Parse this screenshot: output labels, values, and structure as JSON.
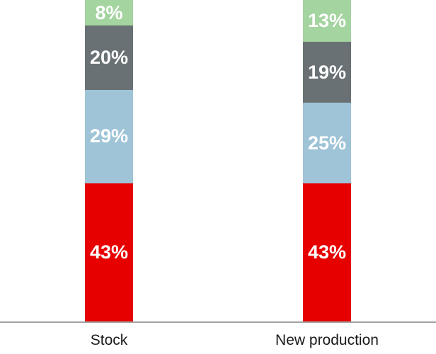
{
  "chart_data": {
    "type": "bar",
    "stacked": true,
    "orientation": "vertical",
    "title": "",
    "xlabel": "",
    "ylabel": "",
    "ylim": [
      0,
      100
    ],
    "grid": false,
    "legend": "none",
    "categories": [
      "Stock",
      "New production"
    ],
    "series": [
      {
        "name": "red-segment",
        "color": "#e60000",
        "values": [
          43,
          43
        ],
        "labels": [
          "43%",
          "43%"
        ]
      },
      {
        "name": "light-blue-segment",
        "color": "#9fc4d8",
        "values": [
          29,
          25
        ],
        "labels": [
          "29%",
          "25%"
        ]
      },
      {
        "name": "dark-gray-segment",
        "color": "#697174",
        "values": [
          20,
          19
        ],
        "labels": [
          "20%",
          "19%"
        ]
      },
      {
        "name": "green-segment",
        "color": "#a4d4a0",
        "values": [
          8,
          13
        ],
        "labels": [
          "8%",
          "13%"
        ]
      }
    ],
    "value_label_color": "#ffffff",
    "axis_line_color": "#a3a3a3",
    "category_label_color": "#1a1a1a"
  }
}
